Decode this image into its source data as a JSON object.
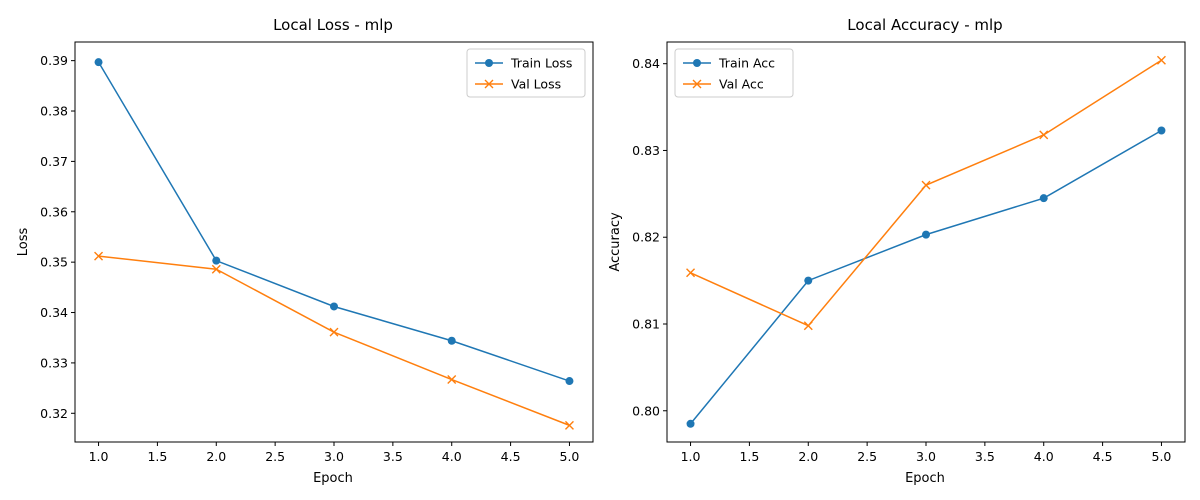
{
  "chart_data": [
    {
      "type": "line",
      "title": "Local Loss - mlp",
      "xlabel": "Epoch",
      "ylabel": "Loss",
      "x": [
        1.0,
        2.0,
        3.0,
        4.0,
        5.0
      ],
      "xlim": [
        0.8,
        5.2
      ],
      "ylim": [
        0.3143,
        0.3937
      ],
      "xticks": [
        1.0,
        1.5,
        2.0,
        2.5,
        3.0,
        3.5,
        4.0,
        4.5,
        5.0
      ],
      "xtick_labels": [
        "1.0",
        "1.5",
        "2.0",
        "2.5",
        "3.0",
        "3.5",
        "4.0",
        "4.5",
        "5.0"
      ],
      "yticks": [
        0.32,
        0.33,
        0.34,
        0.35,
        0.36,
        0.37,
        0.38,
        0.39
      ],
      "ytick_labels": [
        "0.32",
        "0.33",
        "0.34",
        "0.35",
        "0.36",
        "0.37",
        "0.38",
        "0.39"
      ],
      "legend_position": "top-right",
      "grid": false,
      "series": [
        {
          "name": "Train Loss",
          "marker": "circle",
          "color": "#1f77b4",
          "values": [
            0.3897,
            0.3503,
            0.3412,
            0.3344,
            0.3264
          ]
        },
        {
          "name": "Val Loss",
          "marker": "x",
          "color": "#ff7f0e",
          "values": [
            0.3512,
            0.3486,
            0.3361,
            0.3267,
            0.3176
          ]
        }
      ]
    },
    {
      "type": "line",
      "title": "Local Accuracy - mlp",
      "xlabel": "Epoch",
      "ylabel": "Accuracy",
      "x": [
        1.0,
        2.0,
        3.0,
        4.0,
        5.0
      ],
      "xlim": [
        0.8,
        5.2
      ],
      "ylim": [
        0.7964,
        0.8425
      ],
      "xticks": [
        1.0,
        1.5,
        2.0,
        2.5,
        3.0,
        3.5,
        4.0,
        4.5,
        5.0
      ],
      "xtick_labels": [
        "1.0",
        "1.5",
        "2.0",
        "2.5",
        "3.0",
        "3.5",
        "4.0",
        "4.5",
        "5.0"
      ],
      "yticks": [
        0.8,
        0.81,
        0.82,
        0.83,
        0.84
      ],
      "ytick_labels": [
        "0.80",
        "0.81",
        "0.82",
        "0.83",
        "0.84"
      ],
      "legend_position": "top-left",
      "grid": false,
      "series": [
        {
          "name": "Train Acc",
          "marker": "circle",
          "color": "#1f77b4",
          "values": [
            0.7985,
            0.815,
            0.8203,
            0.8245,
            0.8323
          ]
        },
        {
          "name": "Val Acc",
          "marker": "x",
          "color": "#ff7f0e",
          "values": [
            0.8159,
            0.8098,
            0.826,
            0.8318,
            0.8404
          ]
        }
      ]
    }
  ]
}
